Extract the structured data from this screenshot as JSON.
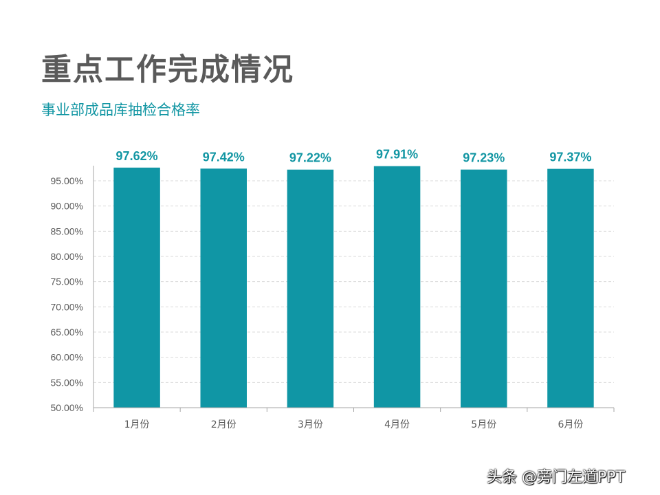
{
  "header": {
    "title": "重点工作完成情况",
    "subtitle": "事业部成品库抽检合格率"
  },
  "watermark": "头条 @旁门左道PPT",
  "colors": {
    "bar": "#1096A5",
    "title": "#5A5A5A",
    "subtitle": "#1296A3",
    "data_label": "#1296A3",
    "axis_text": "#595959",
    "grid": "#D9D9D9",
    "axis_line": "#A6A6A6"
  },
  "chart_data": {
    "type": "bar",
    "categories": [
      "1月份",
      "2月份",
      "3月份",
      "4月份",
      "5月份",
      "6月份"
    ],
    "values": [
      97.62,
      97.42,
      97.22,
      97.91,
      97.23,
      97.37
    ],
    "data_labels": [
      "97.62%",
      "97.42%",
      "97.22%",
      "97.91%",
      "97.23%",
      "97.37%"
    ],
    "yticks": [
      50,
      55,
      60,
      65,
      70,
      75,
      80,
      85,
      90,
      95
    ],
    "ytick_labels": [
      "50.00%",
      "55.00%",
      "60.00%",
      "65.00%",
      "70.00%",
      "75.00%",
      "80.00%",
      "85.00%",
      "90.00%",
      "95.00%"
    ],
    "ylim": [
      50,
      98
    ],
    "grid": true,
    "grid_style": "dashed",
    "legend": "none",
    "title": "",
    "xlabel": "",
    "ylabel": ""
  }
}
